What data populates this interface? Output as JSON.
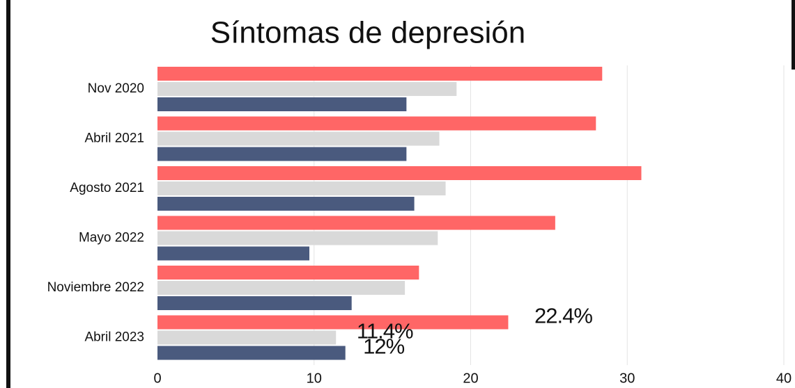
{
  "chart_data": {
    "type": "hbar",
    "title": "Síntomas de depresión",
    "categories": [
      "Nov 2020",
      "Abril 2021",
      "Agosto 2021",
      "Mayo 2022",
      "Noviembre 2022",
      "Abril 2023"
    ],
    "series": [
      {
        "color": "#ff6666",
        "values": [
          28.4,
          28.0,
          30.9,
          25.4,
          16.7,
          22.4
        ],
        "value_labels": [
          null,
          null,
          null,
          null,
          null,
          "22.4%"
        ]
      },
      {
        "color": "#d9d9d9",
        "label_color": "#808080",
        "values": [
          19.1,
          18.0,
          18.4,
          17.9,
          15.8,
          11.4
        ],
        "value_labels": [
          null,
          null,
          null,
          null,
          null,
          "11.4%"
        ]
      },
      {
        "color": "#4a5a7e",
        "values": [
          15.9,
          15.9,
          16.4,
          9.7,
          12.4,
          12
        ],
        "value_labels": [
          null,
          null,
          null,
          null,
          null,
          "12%"
        ]
      }
    ],
    "xlim": [
      0,
      40
    ],
    "xticks": [
      0,
      10,
      20,
      30,
      40
    ],
    "grid": true
  }
}
